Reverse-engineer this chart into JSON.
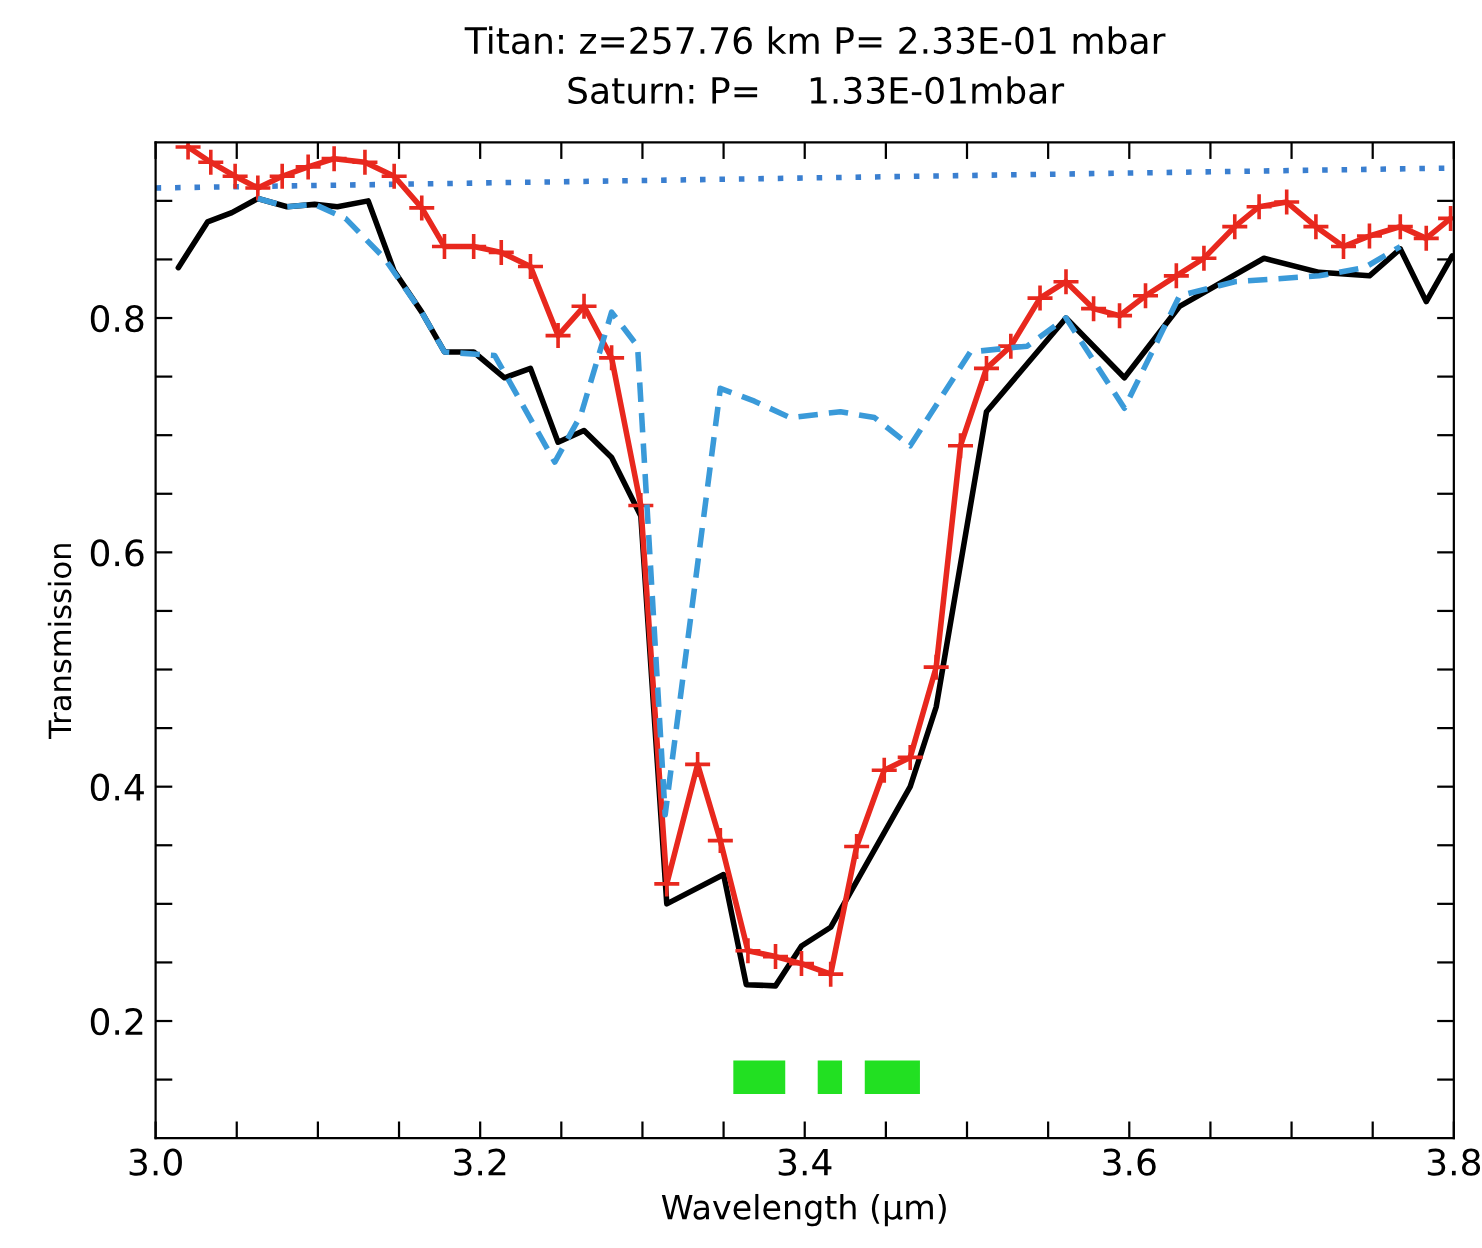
{
  "chart_data": {
    "type": "line",
    "title": "Titan: z=257.76 km P= 2.33E-01 mbar",
    "subtitle": "Saturn: P=    1.33E-01mbar",
    "xlabel": "Wavelength (μm)",
    "ylabel": "Transmission",
    "xlim": [
      3.0,
      3.8
    ],
    "ylim": [
      0.1,
      0.95
    ],
    "xticks": [
      {
        "value": 3.0,
        "label": "3.0"
      },
      {
        "value": 3.05,
        "label": null
      },
      {
        "value": 3.1,
        "label": null
      },
      {
        "value": 3.15,
        "label": null
      },
      {
        "value": 3.2,
        "label": "3.2"
      },
      {
        "value": 3.25,
        "label": null
      },
      {
        "value": 3.3,
        "label": null
      },
      {
        "value": 3.35,
        "label": null
      },
      {
        "value": 3.4,
        "label": "3.4"
      },
      {
        "value": 3.45,
        "label": null
      },
      {
        "value": 3.5,
        "label": null
      },
      {
        "value": 3.55,
        "label": null
      },
      {
        "value": 3.6,
        "label": "3.6"
      },
      {
        "value": 3.65,
        "label": null
      },
      {
        "value": 3.7,
        "label": null
      },
      {
        "value": 3.75,
        "label": null
      },
      {
        "value": 3.8,
        "label": "3.8"
      }
    ],
    "yticks": [
      {
        "value": 0.15,
        "label": null
      },
      {
        "value": 0.2,
        "label": "0.2"
      },
      {
        "value": 0.25,
        "label": null
      },
      {
        "value": 0.3,
        "label": null
      },
      {
        "value": 0.35,
        "label": null
      },
      {
        "value": 0.4,
        "label": "0.4"
      },
      {
        "value": 0.45,
        "label": null
      },
      {
        "value": 0.5,
        "label": null
      },
      {
        "value": 0.55,
        "label": null
      },
      {
        "value": 0.6,
        "label": "0.6"
      },
      {
        "value": 0.65,
        "label": null
      },
      {
        "value": 0.7,
        "label": null
      },
      {
        "value": 0.75,
        "label": null
      },
      {
        "value": 0.8,
        "label": "0.8"
      },
      {
        "value": 0.85,
        "label": null
      },
      {
        "value": 0.9,
        "label": null
      }
    ],
    "grid": false,
    "legend": false,
    "series": [
      {
        "color": "#3a7fd0",
        "line_style": "dotted",
        "x": [
          3.0,
          3.8
        ],
        "values": [
          0.911,
          0.928
        ]
      },
      {
        "color": "#3a9ad9",
        "line_style": "dashed",
        "x": [
          3.063,
          3.081,
          3.098,
          3.117,
          3.141,
          3.164,
          3.178,
          3.209,
          3.246,
          3.262,
          3.281,
          3.297,
          3.314,
          3.348,
          3.369,
          3.391,
          3.422,
          3.443,
          3.465,
          3.502,
          3.537,
          3.561,
          3.597,
          3.631,
          3.665,
          3.717,
          3.745,
          3.767
        ],
        "values": [
          0.902,
          0.895,
          0.897,
          0.885,
          0.851,
          0.805,
          0.771,
          0.768,
          0.677,
          0.717,
          0.805,
          0.776,
          0.376,
          0.74,
          0.729,
          0.715,
          0.72,
          0.715,
          0.691,
          0.771,
          0.776,
          0.8,
          0.723,
          0.819,
          0.831,
          0.836,
          0.843,
          0.861
        ]
      },
      {
        "color": "#000000",
        "line_style": "solid",
        "x": [
          3.014,
          3.032,
          3.047,
          3.063,
          3.081,
          3.098,
          3.112,
          3.131,
          3.147,
          3.164,
          3.178,
          3.196,
          3.215,
          3.231,
          3.248,
          3.264,
          3.281,
          3.299,
          3.315,
          3.35,
          3.364,
          3.382,
          3.398,
          3.416,
          3.465,
          3.481,
          3.512,
          3.561,
          3.597,
          3.631,
          3.683,
          3.717,
          3.748,
          3.767,
          3.783,
          3.799
        ],
        "values": [
          0.843,
          0.882,
          0.89,
          0.902,
          0.895,
          0.897,
          0.895,
          0.9,
          0.84,
          0.805,
          0.771,
          0.771,
          0.749,
          0.757,
          0.694,
          0.704,
          0.681,
          0.631,
          0.3,
          0.325,
          0.231,
          0.23,
          0.264,
          0.28,
          0.4,
          0.468,
          0.72,
          0.8,
          0.749,
          0.81,
          0.851,
          0.839,
          0.836,
          0.859,
          0.814,
          0.853
        ]
      },
      {
        "color": "#e8281e",
        "line_style": "solid",
        "marker": "cross",
        "x": [
          3.02,
          3.034,
          3.049,
          3.063,
          3.078,
          3.094,
          3.11,
          3.129,
          3.147,
          3.164,
          3.178,
          3.196,
          3.213,
          3.231,
          3.248,
          3.264,
          3.281,
          3.299,
          3.315,
          3.334,
          3.348,
          3.365,
          3.382,
          3.398,
          3.416,
          3.432,
          3.449,
          3.465,
          3.481,
          3.496,
          3.512,
          3.527,
          3.545,
          3.561,
          3.578,
          3.594,
          3.61,
          3.629,
          3.646,
          3.665,
          3.68,
          3.697,
          3.715,
          3.732,
          3.748,
          3.767,
          3.783,
          3.798
        ],
        "values": [
          0.946,
          0.933,
          0.921,
          0.911,
          0.921,
          0.929,
          0.936,
          0.933,
          0.921,
          0.894,
          0.861,
          0.861,
          0.856,
          0.844,
          0.785,
          0.81,
          0.766,
          0.64,
          0.317,
          0.419,
          0.354,
          0.26,
          0.255,
          0.249,
          0.24,
          0.349,
          0.414,
          0.425,
          0.502,
          0.691,
          0.757,
          0.776,
          0.817,
          0.831,
          0.808,
          0.802,
          0.819,
          0.836,
          0.851,
          0.878,
          0.895,
          0.899,
          0.878,
          0.861,
          0.87,
          0.878,
          0.868,
          0.885
        ]
      },
      {
        "color": "#22e022",
        "line_style": "solid",
        "x": [
          3.356,
          3.388,
          3.398,
          3.408,
          3.423,
          3.43,
          3.437,
          3.471
        ],
        "values": [
          0.152,
          0.152,
          null,
          0.152,
          0.152,
          null,
          0.152,
          0.152
        ]
      }
    ]
  }
}
